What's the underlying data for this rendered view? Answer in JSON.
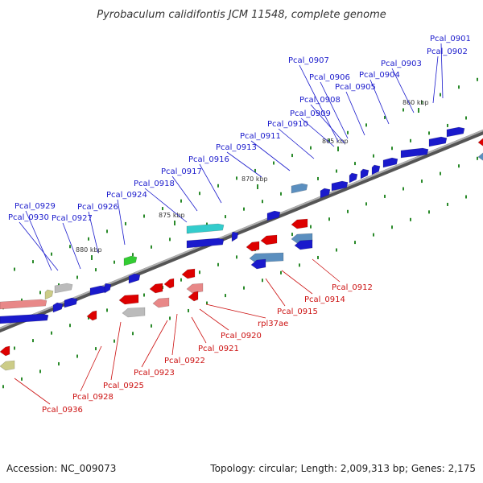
{
  "title": "Pyrobaculum calidifontis JCM 11548, complete genome",
  "accession": "Accession: NC_009073",
  "summary": "Topology: circular; Length: 2,009,313 bp; Genes: 2,175",
  "colors": {
    "forward": "#1a1acc",
    "reverse": "#dd0000",
    "backbone": "#8a8a8a",
    "tick": "#2a8a2a",
    "label_forward": "#1a1acc",
    "label_reverse": "#cc1111"
  },
  "scale_ticks": [
    "860 kbp",
    "865 kbp",
    "870 kbp",
    "875 kbp",
    "880 kbp"
  ],
  "forward_labels": [
    "Pcal_0901",
    "Pcal_0902",
    "Pcal_0903",
    "Pcal_0904",
    "Pcal_0905",
    "Pcal_0906",
    "Pcal_0907",
    "Pcal_0908",
    "Pcal_0909",
    "Pcal_0910",
    "Pcal_0911",
    "Pcal_0913",
    "Pcal_0916",
    "Pcal_0917",
    "Pcal_0918",
    "Pcal_0924",
    "Pcal_0926",
    "Pcal_0927",
    "Pcal_0929",
    "Pcal_0930"
  ],
  "reverse_labels": [
    "Pcal_0912",
    "Pcal_0914",
    "Pcal_0915",
    "rpl37ae",
    "Pcal_0920",
    "Pcal_0921",
    "Pcal_0922",
    "Pcal_0923",
    "Pcal_0925",
    "Pcal_0928",
    "Pcal_0936"
  ]
}
